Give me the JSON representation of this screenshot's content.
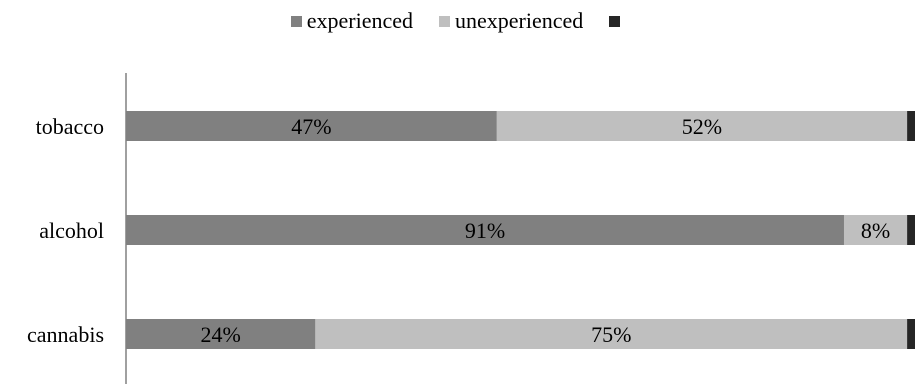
{
  "chart_data": {
    "type": "bar",
    "orientation": "horizontal",
    "stacked": true,
    "categories": [
      "tobacco",
      "alcohol",
      "cannabis"
    ],
    "series": [
      {
        "name": "experienced",
        "values": [
          47,
          91,
          24
        ],
        "labels": [
          "47%",
          "91%",
          "24%"
        ],
        "color": "#808080"
      },
      {
        "name": "unexperienced",
        "values": [
          52,
          8,
          75
        ],
        "labels": [
          "52%",
          "8%",
          "75%"
        ],
        "color": "#bfbfbf"
      },
      {
        "name": "",
        "values": [
          1,
          1,
          1
        ],
        "labels": [
          "",
          "",
          ""
        ],
        "color": "#262626"
      }
    ],
    "xlim": [
      0,
      100
    ],
    "unit": "%",
    "grid": false,
    "legend_position": "top"
  }
}
